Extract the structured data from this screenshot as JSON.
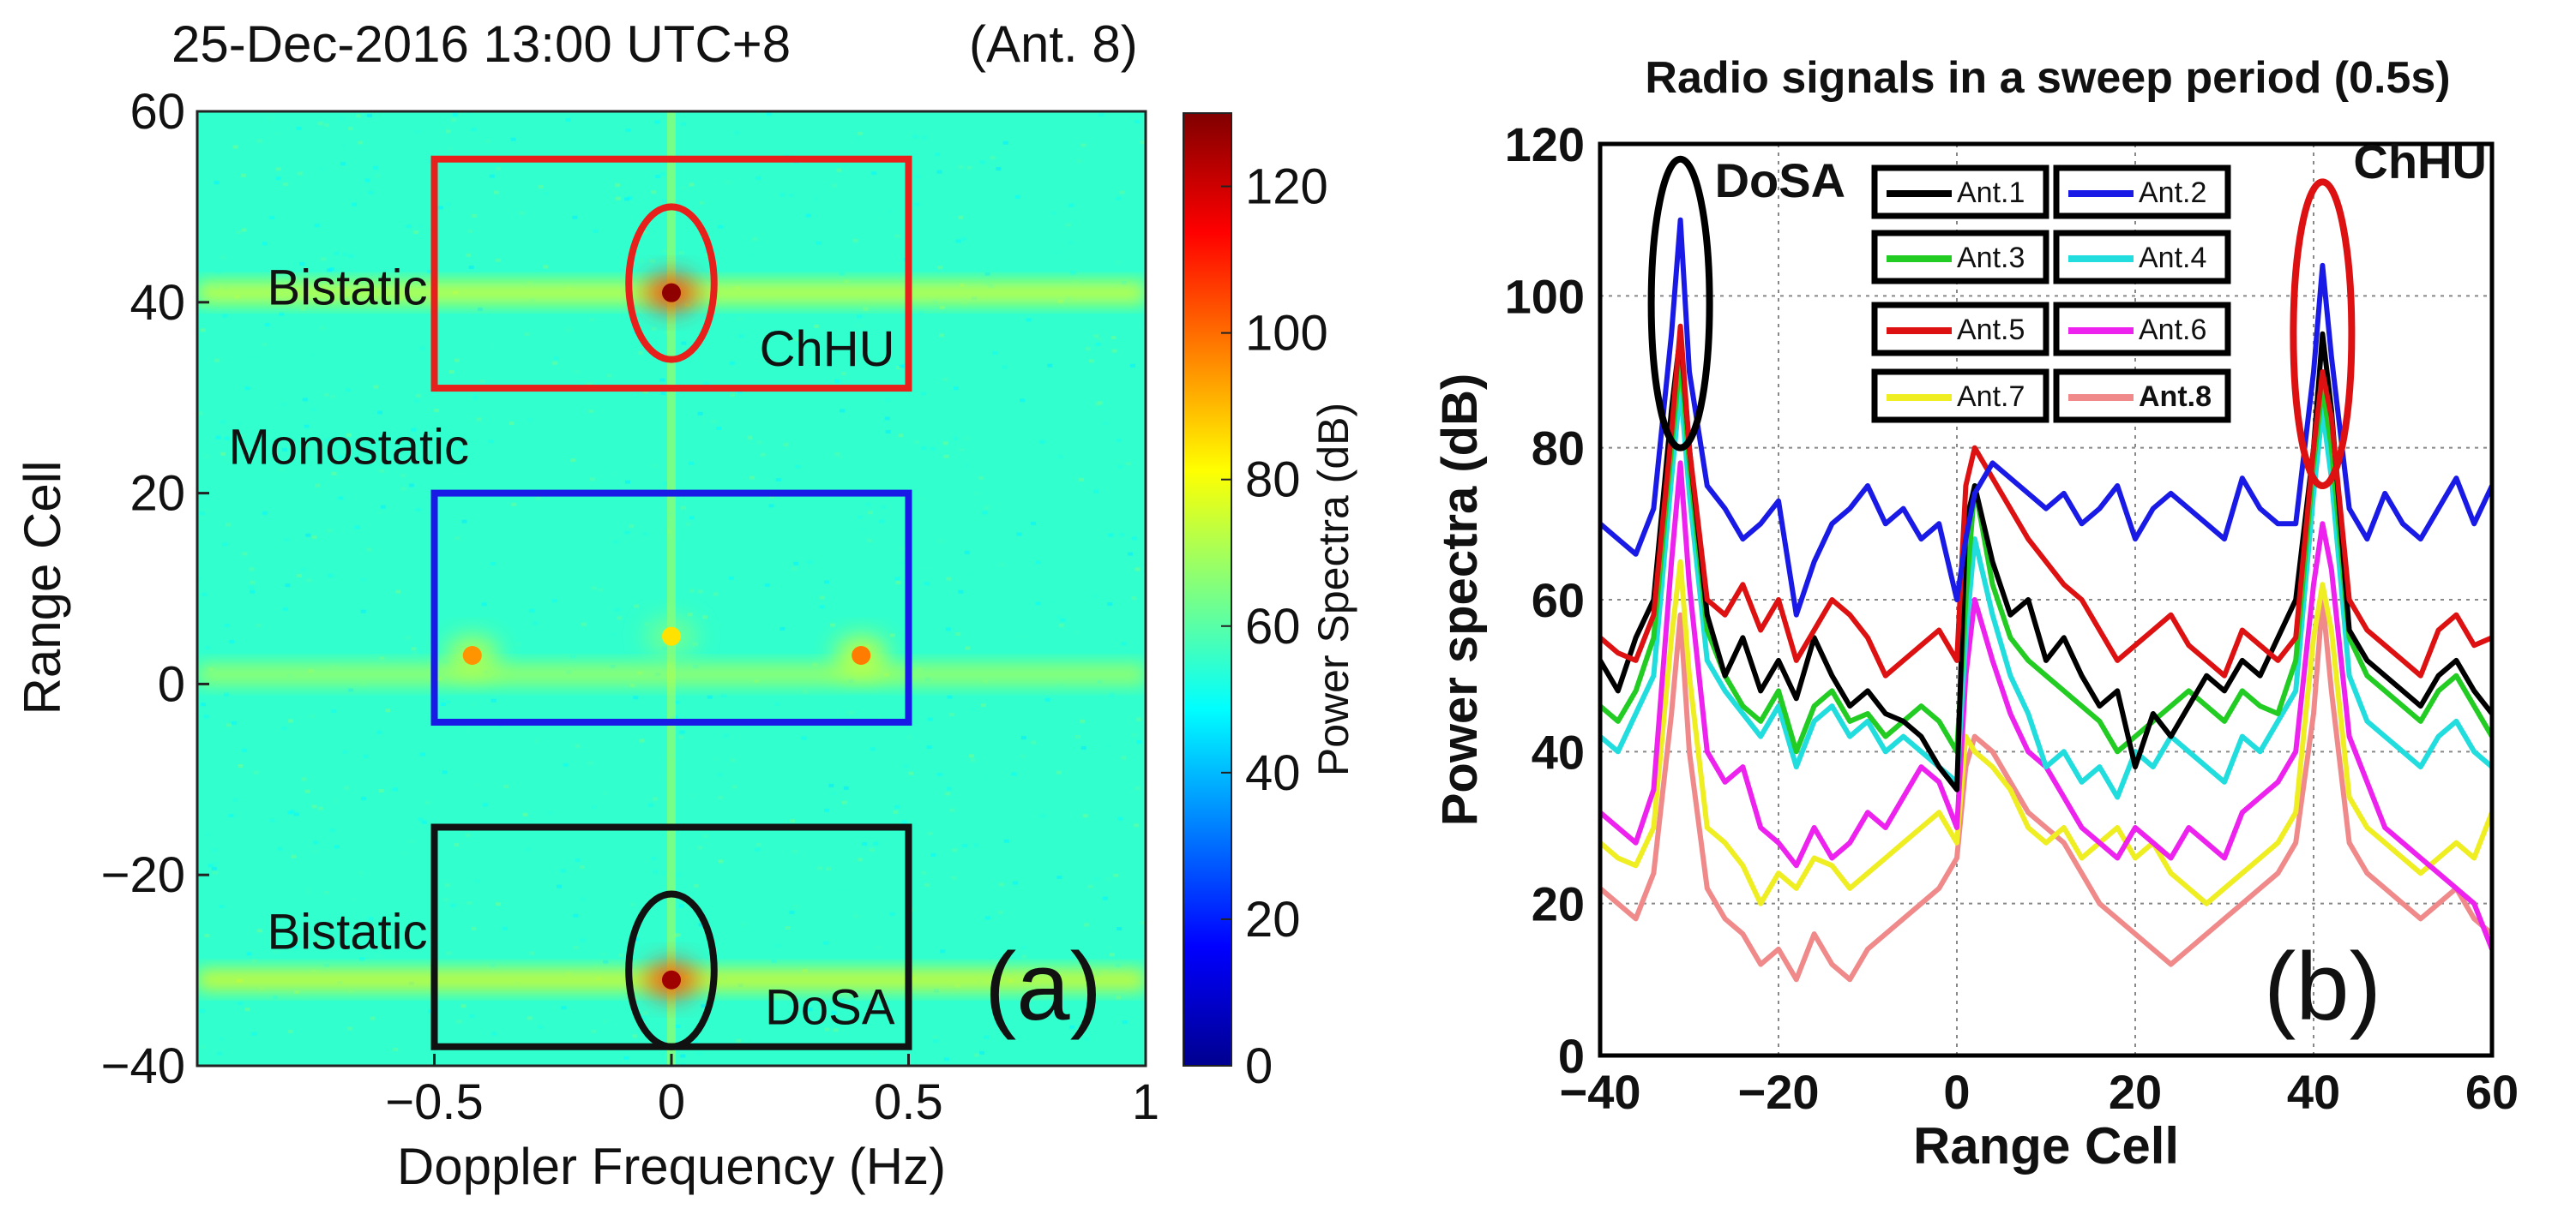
{
  "chart_data": [
    {
      "panel": "a",
      "type": "heatmap",
      "title": "25-Dec-2016 13:00 UTC+8",
      "subtitle": "(Ant. 8)",
      "xlabel": "Doppler Frequency (Hz)",
      "ylabel": "Range Cell",
      "xlim": [
        -1,
        1
      ],
      "ylim": [
        -40,
        60
      ],
      "xticks": [
        "−0.5",
        "0",
        "0.5",
        "1"
      ],
      "xtick_values": [
        -0.5,
        0,
        0.5,
        1
      ],
      "yticks": [
        "60",
        "40",
        "20",
        "0",
        "−20",
        "−40"
      ],
      "ytick_values": [
        60,
        40,
        20,
        0,
        -20,
        -40
      ],
      "colorbar": {
        "label": "Power Spectra (dB)",
        "range": [
          0,
          130
        ],
        "ticks": [
          "120",
          "100",
          "80",
          "60",
          "40",
          "20",
          "0"
        ],
        "tick_values": [
          120,
          100,
          80,
          60,
          40,
          20,
          0
        ]
      },
      "background_level_db": 55,
      "bands": [
        {
          "range_cell": 41,
          "level_db": 80
        },
        {
          "range_cell": 1,
          "level_db": 72
        },
        {
          "range_cell": -31,
          "level_db": 82
        }
      ],
      "hotspots": [
        {
          "doppler": 0,
          "range_cell": 41,
          "level_db": 128
        },
        {
          "doppler": 0,
          "range_cell": -31,
          "level_db": 126
        },
        {
          "doppler": -0.42,
          "range_cell": 3,
          "level_db": 95
        },
        {
          "doppler": 0.4,
          "range_cell": 3,
          "level_db": 98
        },
        {
          "doppler": 0,
          "range_cell": 5,
          "level_db": 85
        }
      ],
      "regions": [
        {
          "label": "Bistatic",
          "tag": "ChHU",
          "color": "#e8201c",
          "doppler_range": [
            -0.5,
            0.5
          ],
          "range_cells": [
            31,
            55
          ],
          "ellipse_center": [
            0,
            42
          ],
          "ellipse_radii": [
            0.09,
            8
          ]
        },
        {
          "label": "Monostatic",
          "tag": "",
          "color": "#1a1ae6",
          "doppler_range": [
            -0.5,
            0.5
          ],
          "range_cells": [
            -4,
            20
          ]
        },
        {
          "label": "Bistatic",
          "tag": "DoSA",
          "color": "#111111",
          "doppler_range": [
            -0.5,
            0.5
          ],
          "range_cells": [
            -38,
            -15
          ],
          "ellipse_center": [
            0,
            -30
          ],
          "ellipse_radii": [
            0.09,
            8
          ]
        }
      ],
      "panel_label": "(a)"
    },
    {
      "panel": "b",
      "type": "line",
      "title": "Radio signals in a sweep period (0.5s)",
      "xlabel": "Range Cell",
      "ylabel": "Power spectra (dB)",
      "xlim": [
        -40,
        60
      ],
      "ylim": [
        0,
        120
      ],
      "xticks": [
        "−40",
        "−20",
        "0",
        "20",
        "40",
        "60"
      ],
      "xtick_values": [
        -40,
        -20,
        0,
        20,
        40,
        60
      ],
      "yticks": [
        "0",
        "20",
        "40",
        "60",
        "80",
        "100",
        "120"
      ],
      "ytick_values": [
        0,
        20,
        40,
        60,
        80,
        100,
        120
      ],
      "grid": true,
      "x": [
        -40,
        -38,
        -36,
        -34,
        -32,
        -31,
        -30,
        -28,
        -26,
        -24,
        -22,
        -20,
        -18,
        -16,
        -14,
        -12,
        -10,
        -8,
        -6,
        -4,
        -2,
        0,
        1,
        2,
        4,
        6,
        8,
        10,
        12,
        14,
        16,
        18,
        20,
        22,
        24,
        26,
        28,
        30,
        32,
        34,
        36,
        38,
        40,
        41,
        42,
        44,
        46,
        48,
        50,
        52,
        54,
        56,
        58,
        60
      ],
      "series": [
        {
          "name": "Ant.1",
          "color": "#000000",
          "values": [
            52,
            48,
            55,
            60,
            85,
            95,
            80,
            58,
            50,
            55,
            48,
            52,
            47,
            55,
            50,
            46,
            48,
            45,
            44,
            42,
            38,
            35,
            70,
            75,
            65,
            58,
            60,
            52,
            55,
            50,
            46,
            48,
            38,
            45,
            42,
            46,
            50,
            48,
            52,
            50,
            55,
            60,
            80,
            95,
            85,
            56,
            52,
            50,
            48,
            46,
            50,
            52,
            48,
            45
          ]
        },
        {
          "name": "Ant.2",
          "color": "#1a1ae6",
          "values": [
            70,
            68,
            66,
            72,
            95,
            110,
            90,
            75,
            72,
            68,
            70,
            73,
            58,
            65,
            70,
            72,
            75,
            70,
            72,
            68,
            70,
            60,
            68,
            74,
            78,
            76,
            74,
            72,
            74,
            70,
            72,
            75,
            68,
            72,
            74,
            72,
            70,
            68,
            76,
            72,
            70,
            70,
            90,
            104,
            92,
            72,
            68,
            74,
            70,
            68,
            72,
            76,
            70,
            75
          ]
        },
        {
          "name": "Ant.3",
          "color": "#22cc22",
          "values": [
            46,
            44,
            48,
            55,
            80,
            92,
            78,
            56,
            50,
            46,
            44,
            48,
            40,
            46,
            48,
            44,
            45,
            42,
            44,
            46,
            44,
            40,
            60,
            75,
            62,
            55,
            52,
            50,
            48,
            46,
            44,
            40,
            42,
            44,
            46,
            48,
            46,
            44,
            48,
            46,
            45,
            52,
            78,
            88,
            80,
            55,
            50,
            48,
            46,
            44,
            48,
            50,
            46,
            42
          ]
        },
        {
          "name": "Ant.4",
          "color": "#22dddd",
          "values": [
            42,
            40,
            45,
            50,
            76,
            88,
            74,
            52,
            48,
            45,
            42,
            46,
            38,
            44,
            46,
            42,
            44,
            40,
            42,
            40,
            38,
            36,
            55,
            68,
            58,
            50,
            45,
            38,
            40,
            36,
            38,
            34,
            40,
            38,
            42,
            40,
            38,
            36,
            42,
            40,
            44,
            48,
            74,
            85,
            76,
            50,
            44,
            42,
            40,
            38,
            42,
            44,
            40,
            38
          ]
        },
        {
          "name": "Ant.5",
          "color": "#dd1111",
          "values": [
            55,
            53,
            52,
            58,
            82,
            96,
            80,
            60,
            58,
            62,
            56,
            60,
            52,
            56,
            60,
            58,
            55,
            50,
            52,
            54,
            56,
            52,
            75,
            80,
            76,
            72,
            68,
            65,
            62,
            60,
            56,
            52,
            54,
            56,
            58,
            54,
            52,
            50,
            56,
            54,
            52,
            55,
            80,
            90,
            84,
            60,
            56,
            54,
            52,
            50,
            56,
            58,
            54,
            55
          ]
        },
        {
          "name": "Ant.6",
          "color": "#ee22ee",
          "values": [
            32,
            30,
            28,
            35,
            65,
            78,
            62,
            40,
            36,
            38,
            30,
            28,
            25,
            30,
            26,
            28,
            32,
            30,
            34,
            38,
            36,
            30,
            50,
            60,
            52,
            45,
            40,
            38,
            34,
            30,
            28,
            26,
            30,
            28,
            26,
            30,
            28,
            26,
            32,
            34,
            36,
            40,
            62,
            70,
            64,
            42,
            36,
            30,
            28,
            26,
            24,
            22,
            20,
            14
          ]
        },
        {
          "name": "Ant.7",
          "color": "#eeee22",
          "values": [
            28,
            26,
            25,
            30,
            55,
            65,
            50,
            30,
            28,
            25,
            20,
            24,
            22,
            26,
            25,
            22,
            24,
            26,
            28,
            30,
            32,
            28,
            42,
            40,
            38,
            35,
            30,
            28,
            30,
            26,
            28,
            30,
            26,
            28,
            24,
            22,
            20,
            22,
            24,
            26,
            28,
            32,
            55,
            62,
            56,
            34,
            30,
            28,
            26,
            24,
            26,
            28,
            26,
            32
          ]
        },
        {
          "name": "Ant.8",
          "color": "#f08a8a",
          "values": [
            22,
            20,
            18,
            24,
            45,
            58,
            40,
            22,
            18,
            16,
            12,
            14,
            10,
            16,
            12,
            10,
            14,
            16,
            18,
            20,
            22,
            26,
            38,
            42,
            40,
            36,
            32,
            30,
            28,
            24,
            20,
            18,
            16,
            14,
            12,
            14,
            16,
            18,
            20,
            22,
            24,
            28,
            45,
            60,
            48,
            28,
            24,
            22,
            20,
            18,
            20,
            22,
            18,
            16
          ]
        }
      ],
      "legend": [
        "Ant.1",
        "Ant.2",
        "Ant.3",
        "Ant.4",
        "Ant.5",
        "Ant.6",
        "Ant.7",
        "Ant.8"
      ],
      "legend_placement": "top-center",
      "annotations": [
        {
          "text": "DoSA",
          "color": "#000000",
          "x": -31,
          "ellipse_y": [
            80,
            118
          ]
        },
        {
          "text": "ChHU",
          "color": "#dd1111",
          "x": 41,
          "ellipse_y": [
            75,
            115
          ]
        }
      ],
      "panel_label": "(b)"
    }
  ]
}
